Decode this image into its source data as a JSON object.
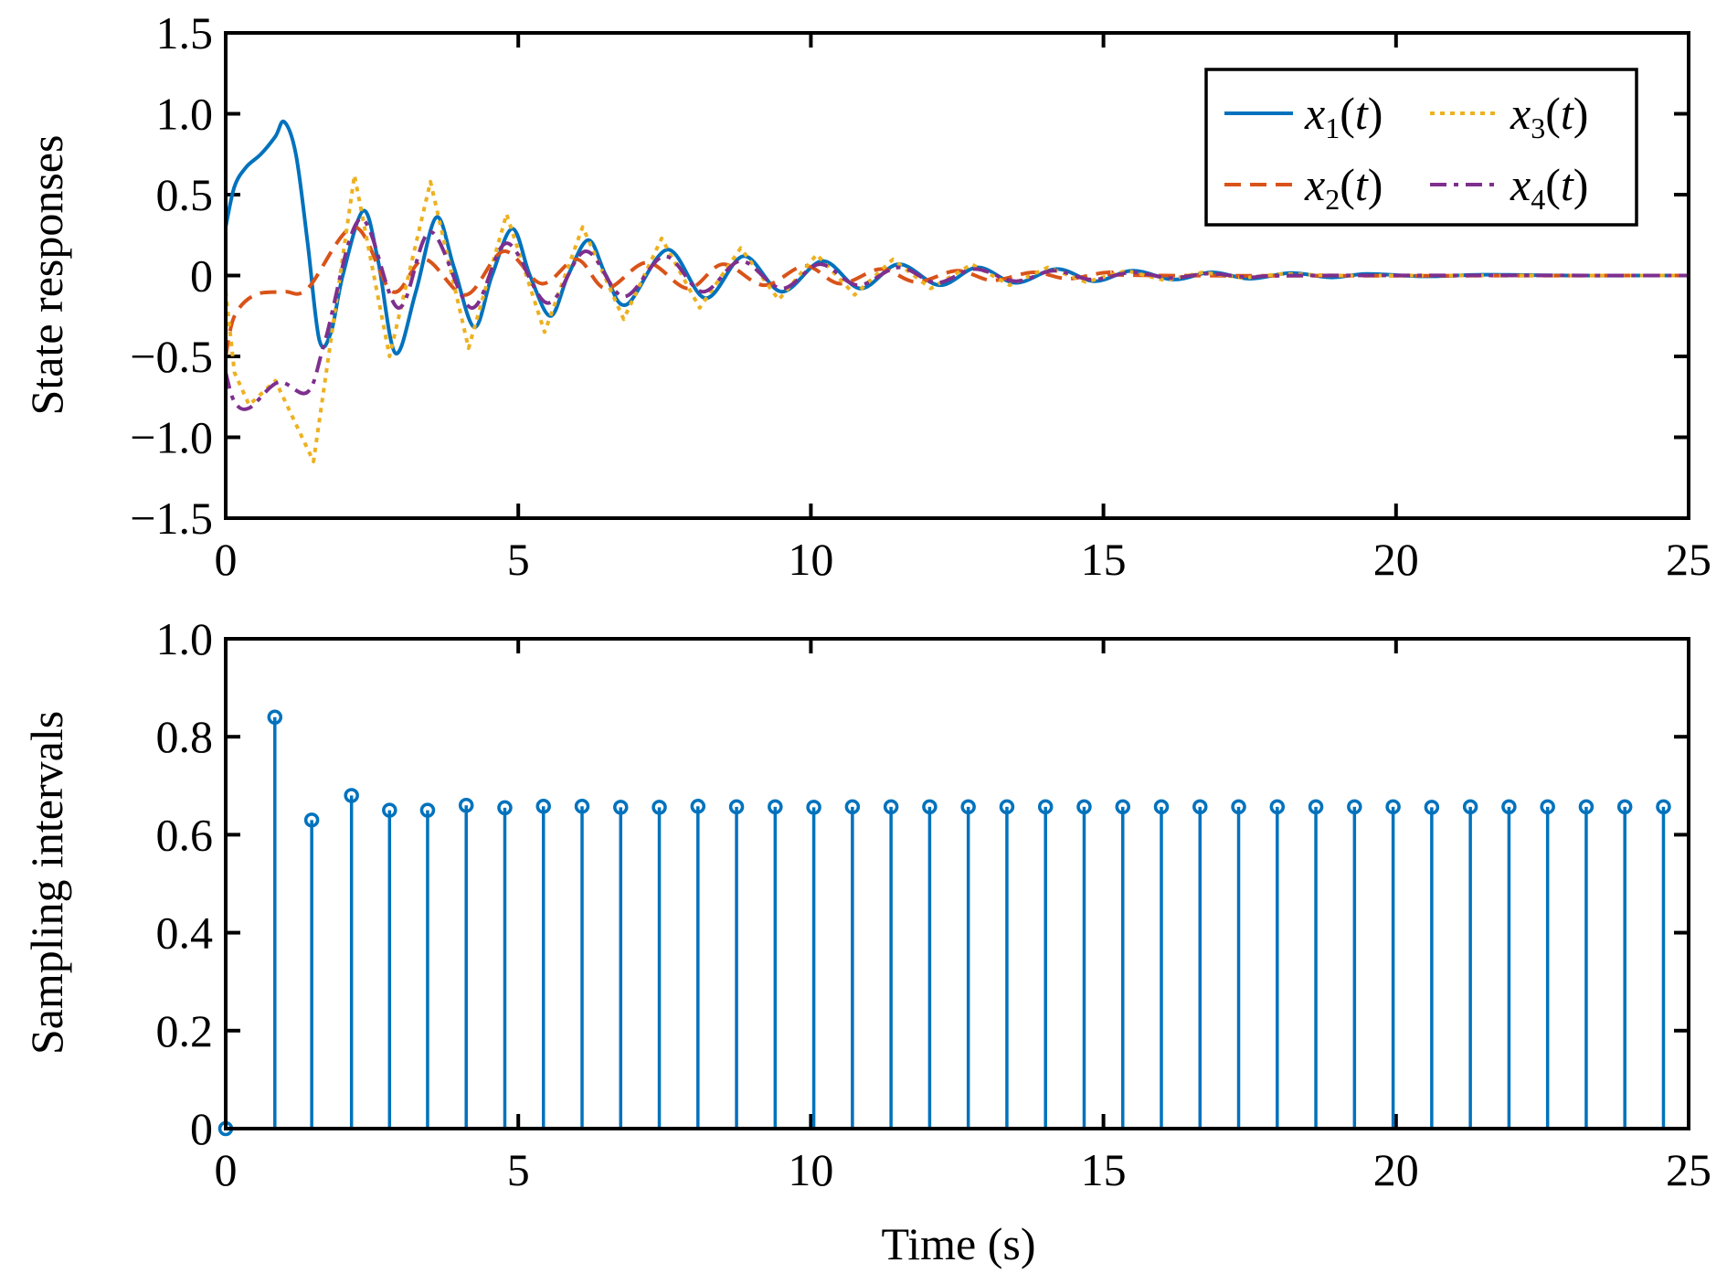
{
  "chart_data": [
    {
      "type": "line",
      "ylabel": "State responses",
      "xlabel": "",
      "xlim": [
        0,
        25
      ],
      "ylim": [
        -1.5,
        1.5
      ],
      "xticks": [
        "0",
        "5",
        "10",
        "15",
        "20",
        "25"
      ],
      "yticks": [
        "−1.5",
        "−1.0",
        "−0.5",
        "0",
        "0.5",
        "1.0",
        "1.5"
      ],
      "grid": false,
      "legend_placement": "top-right",
      "series": [
        {
          "name": "x1(t)",
          "color": "#0072BD",
          "style": "solid",
          "points": [
            [
              0,
              0.3
            ],
            [
              0.15,
              0.55
            ],
            [
              0.35,
              0.67
            ],
            [
              0.6,
              0.75
            ],
            [
              0.85,
              0.86
            ],
            [
              1.0,
              0.95
            ],
            [
              1.2,
              0.75
            ],
            [
              1.4,
              0.2
            ],
            [
              1.6,
              -0.4
            ],
            [
              1.8,
              -0.35
            ],
            [
              2.0,
              0.0
            ],
            [
              2.35,
              0.4
            ],
            [
              2.6,
              0.1
            ],
            [
              2.9,
              -0.48
            ],
            [
              3.25,
              -0.1
            ],
            [
              3.6,
              0.36
            ],
            [
              3.9,
              0.05
            ],
            [
              4.25,
              -0.32
            ],
            [
              4.55,
              0.0
            ],
            [
              4.9,
              0.29
            ],
            [
              5.2,
              0.0
            ],
            [
              5.55,
              -0.25
            ],
            [
              5.85,
              0.0
            ],
            [
              6.2,
              0.22
            ],
            [
              6.5,
              0.0
            ],
            [
              6.85,
              -0.18
            ],
            [
              7.55,
              0.16
            ],
            [
              8.2,
              -0.14
            ],
            [
              8.85,
              0.12
            ],
            [
              9.5,
              -0.1
            ],
            [
              10.2,
              0.09
            ],
            [
              10.85,
              -0.08
            ],
            [
              11.5,
              0.07
            ],
            [
              12.2,
              -0.06
            ],
            [
              12.85,
              0.05
            ],
            [
              13.5,
              -0.045
            ],
            [
              14.2,
              0.04
            ],
            [
              14.85,
              -0.035
            ],
            [
              15.5,
              0.03
            ],
            [
              16.2,
              -0.025
            ],
            [
              16.85,
              0.02
            ],
            [
              17.5,
              -0.02
            ],
            [
              18.2,
              0.015
            ],
            [
              18.9,
              -0.012
            ],
            [
              19.5,
              0.01
            ],
            [
              20.5,
              -0.005
            ],
            [
              21.5,
              0.005
            ],
            [
              23,
              0
            ],
            [
              25,
              0
            ]
          ]
        },
        {
          "name": "x2(t)",
          "color": "#D95319",
          "style": "dashed",
          "points": [
            [
              0,
              -0.5
            ],
            [
              0.15,
              -0.25
            ],
            [
              0.5,
              -0.12
            ],
            [
              1.0,
              -0.1
            ],
            [
              1.4,
              -0.08
            ],
            [
              2.2,
              0.3
            ],
            [
              2.85,
              -0.1
            ],
            [
              3.4,
              0.1
            ],
            [
              4.1,
              -0.12
            ],
            [
              4.75,
              0.15
            ],
            [
              5.4,
              -0.05
            ],
            [
              6.0,
              0.1
            ],
            [
              6.5,
              -0.08
            ],
            [
              7.2,
              0.08
            ],
            [
              7.9,
              -0.08
            ],
            [
              8.5,
              0.07
            ],
            [
              9.2,
              -0.06
            ],
            [
              9.9,
              0.06
            ],
            [
              10.5,
              -0.05
            ],
            [
              11.2,
              0.04
            ],
            [
              11.8,
              -0.04
            ],
            [
              12.5,
              0.03
            ],
            [
              13.1,
              -0.03
            ],
            [
              13.8,
              0.02
            ],
            [
              14.4,
              -0.02
            ],
            [
              15.1,
              0.02
            ],
            [
              16,
              0
            ],
            [
              25,
              0
            ]
          ]
        },
        {
          "name": "x3(t)",
          "color": "#EDB120",
          "style": "dotted",
          "points": [
            [
              0,
              -0.1
            ],
            [
              0.15,
              -0.6
            ],
            [
              0.4,
              -0.8
            ],
            [
              0.85,
              -0.65
            ],
            [
              1.5,
              -1.15
            ],
            [
              2.2,
              0.62
            ],
            [
              2.8,
              -0.5
            ],
            [
              3.5,
              0.58
            ],
            [
              4.15,
              -0.45
            ],
            [
              4.8,
              0.38
            ],
            [
              5.45,
              -0.35
            ],
            [
              6.1,
              0.3
            ],
            [
              6.8,
              -0.27
            ],
            [
              7.45,
              0.23
            ],
            [
              8.1,
              -0.2
            ],
            [
              8.8,
              0.17
            ],
            [
              9.45,
              -0.15
            ],
            [
              10.1,
              0.13
            ],
            [
              10.75,
              -0.12
            ],
            [
              11.4,
              0.1
            ],
            [
              12.05,
              -0.08
            ],
            [
              12.75,
              0.07
            ],
            [
              13.4,
              -0.06
            ],
            [
              14.05,
              0.05
            ],
            [
              14.7,
              -0.04
            ],
            [
              15.4,
              0.03
            ],
            [
              16.05,
              -0.03
            ],
            [
              16.7,
              0.02
            ],
            [
              17.4,
              -0.015
            ],
            [
              18.05,
              0.01
            ],
            [
              19,
              0
            ],
            [
              25,
              0
            ]
          ]
        },
        {
          "name": "x4(t)",
          "color": "#7E2F8E",
          "style": "dashdot",
          "points": [
            [
              0,
              -0.6
            ],
            [
              0.15,
              -0.78
            ],
            [
              0.4,
              -0.82
            ],
            [
              0.9,
              -0.66
            ],
            [
              1.4,
              -0.72
            ],
            [
              1.7,
              -0.4
            ],
            [
              2.3,
              0.35
            ],
            [
              2.95,
              -0.2
            ],
            [
              3.5,
              0.27
            ],
            [
              4.2,
              -0.2
            ],
            [
              4.8,
              0.2
            ],
            [
              5.5,
              -0.17
            ],
            [
              6.15,
              0.15
            ],
            [
              6.8,
              -0.13
            ],
            [
              7.5,
              0.12
            ],
            [
              8.15,
              -0.1
            ],
            [
              8.8,
              0.09
            ],
            [
              9.5,
              -0.08
            ],
            [
              10.15,
              0.07
            ],
            [
              10.8,
              -0.06
            ],
            [
              11.5,
              0.05
            ],
            [
              12.15,
              -0.045
            ],
            [
              12.8,
              0.04
            ],
            [
              13.5,
              -0.035
            ],
            [
              14.15,
              0.03
            ],
            [
              14.8,
              -0.025
            ],
            [
              15.5,
              0.02
            ],
            [
              16.15,
              -0.015
            ],
            [
              16.8,
              0.012
            ],
            [
              17.5,
              -0.01
            ],
            [
              18.5,
              0
            ],
            [
              25,
              0
            ]
          ]
        }
      ]
    },
    {
      "type": "stem",
      "ylabel": "Sampling intervals",
      "xlabel": "Time (s)",
      "xlim": [
        0,
        25
      ],
      "ylim": [
        0,
        1.0
      ],
      "xticks": [
        "0",
        "5",
        "10",
        "15",
        "20",
        "25"
      ],
      "yticks": [
        "0",
        "0.2",
        "0.4",
        "0.6",
        "0.8",
        "1.0"
      ],
      "grid": false,
      "color": "#0072BD",
      "x": [
        0,
        0.84,
        1.47,
        2.15,
        2.8,
        3.45,
        4.11,
        4.77,
        5.43,
        6.09,
        6.75,
        7.41,
        8.07,
        8.73,
        9.39,
        10.05,
        10.71,
        11.37,
        12.03,
        12.69,
        13.35,
        14.01,
        14.67,
        15.33,
        15.99,
        16.65,
        17.31,
        17.97,
        18.63,
        19.29,
        19.95,
        20.61,
        21.27,
        21.93,
        22.59,
        23.25,
        23.91,
        24.57
      ],
      "y": [
        0,
        0.84,
        0.63,
        0.68,
        0.65,
        0.65,
        0.66,
        0.655,
        0.658,
        0.658,
        0.656,
        0.656,
        0.658,
        0.657,
        0.657,
        0.656,
        0.657,
        0.657,
        0.657,
        0.657,
        0.657,
        0.657,
        0.657,
        0.657,
        0.657,
        0.657,
        0.657,
        0.657,
        0.657,
        0.657,
        0.657,
        0.656,
        0.657,
        0.657,
        0.657,
        0.657,
        0.657,
        0.657
      ]
    }
  ]
}
